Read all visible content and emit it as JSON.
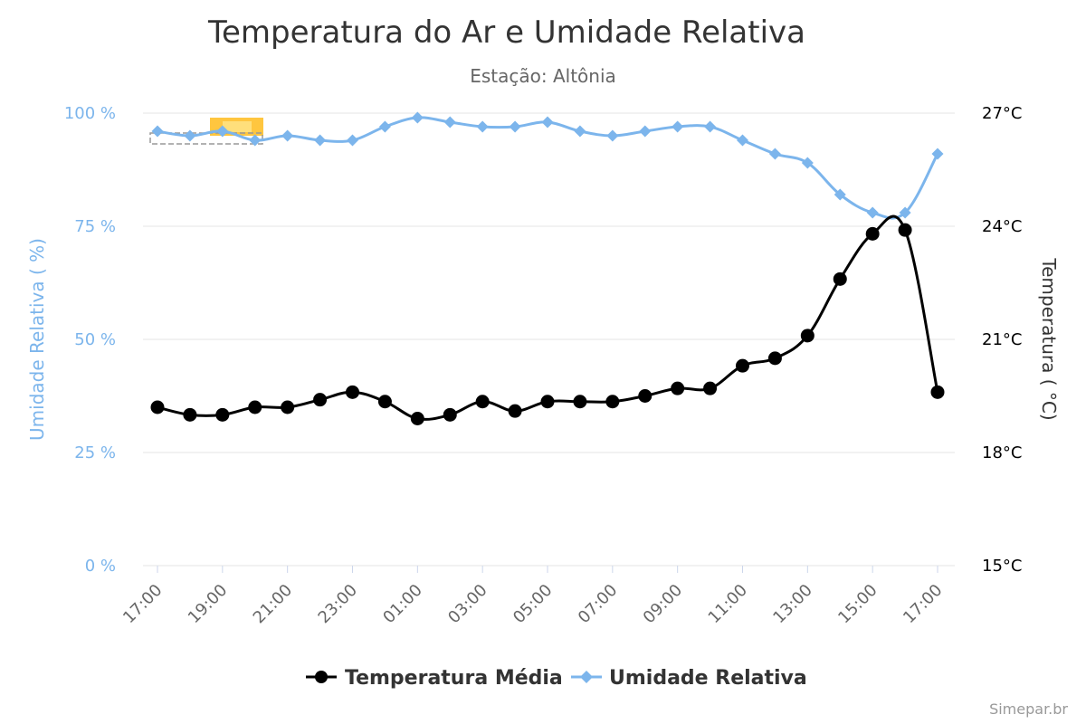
{
  "chart_data": {
    "type": "line",
    "title": "Temperatura do Ar e Umidade Relativa",
    "subtitle": "Estação: Altônia",
    "x": [
      "17:00",
      "18:00",
      "19:00",
      "20:00",
      "21:00",
      "22:00",
      "23:00",
      "00:00",
      "01:00",
      "02:00",
      "03:00",
      "04:00",
      "05:00",
      "06:00",
      "07:00",
      "08:00",
      "09:00",
      "10:00",
      "11:00",
      "12:00",
      "13:00",
      "14:00",
      "15:00",
      "16:00",
      "17:00"
    ],
    "x_tick_labels": [
      "17:00",
      "19:00",
      "21:00",
      "23:00",
      "01:00",
      "03:00",
      "05:00",
      "07:00",
      "09:00",
      "11:00",
      "13:00",
      "15:00",
      "17:00"
    ],
    "y_left": {
      "label": "Umidade Relativa ( %)",
      "range": [
        0,
        100
      ],
      "ticks": [
        "0 %",
        "25 %",
        "50 %",
        "75 %",
        "100 %"
      ],
      "tick_values": [
        0,
        25,
        50,
        75,
        100
      ]
    },
    "y_right": {
      "label": "Temperatura ( °C)",
      "range": [
        15,
        27
      ],
      "ticks": [
        "15°C",
        "18°C",
        "21°C",
        "24°C",
        "27°C"
      ],
      "tick_values": [
        15,
        18,
        21,
        24,
        27
      ]
    },
    "series": [
      {
        "name": "Temperatura Média",
        "axis": "right",
        "color": "#000000",
        "marker": "circle",
        "values": [
          19.2,
          19.0,
          19.0,
          19.2,
          19.2,
          19.4,
          19.6,
          19.35,
          18.9,
          19.0,
          19.35,
          19.1,
          19.35,
          19.35,
          19.35,
          19.5,
          19.7,
          19.7,
          20.3,
          20.5,
          21.1,
          22.6,
          23.8,
          23.9,
          19.6
        ]
      },
      {
        "name": "Umidade Relativa",
        "axis": "left",
        "color": "#7cb5ec",
        "marker": "diamond",
        "values": [
          96,
          95,
          96,
          94,
          95,
          94,
          94,
          97,
          99,
          98,
          97,
          97,
          98,
          96,
          95,
          96,
          97,
          97,
          94,
          91,
          89,
          82,
          78,
          78,
          91
        ]
      }
    ],
    "legend": "bottom-center",
    "grid": true
  },
  "credit": "Simepar.br"
}
